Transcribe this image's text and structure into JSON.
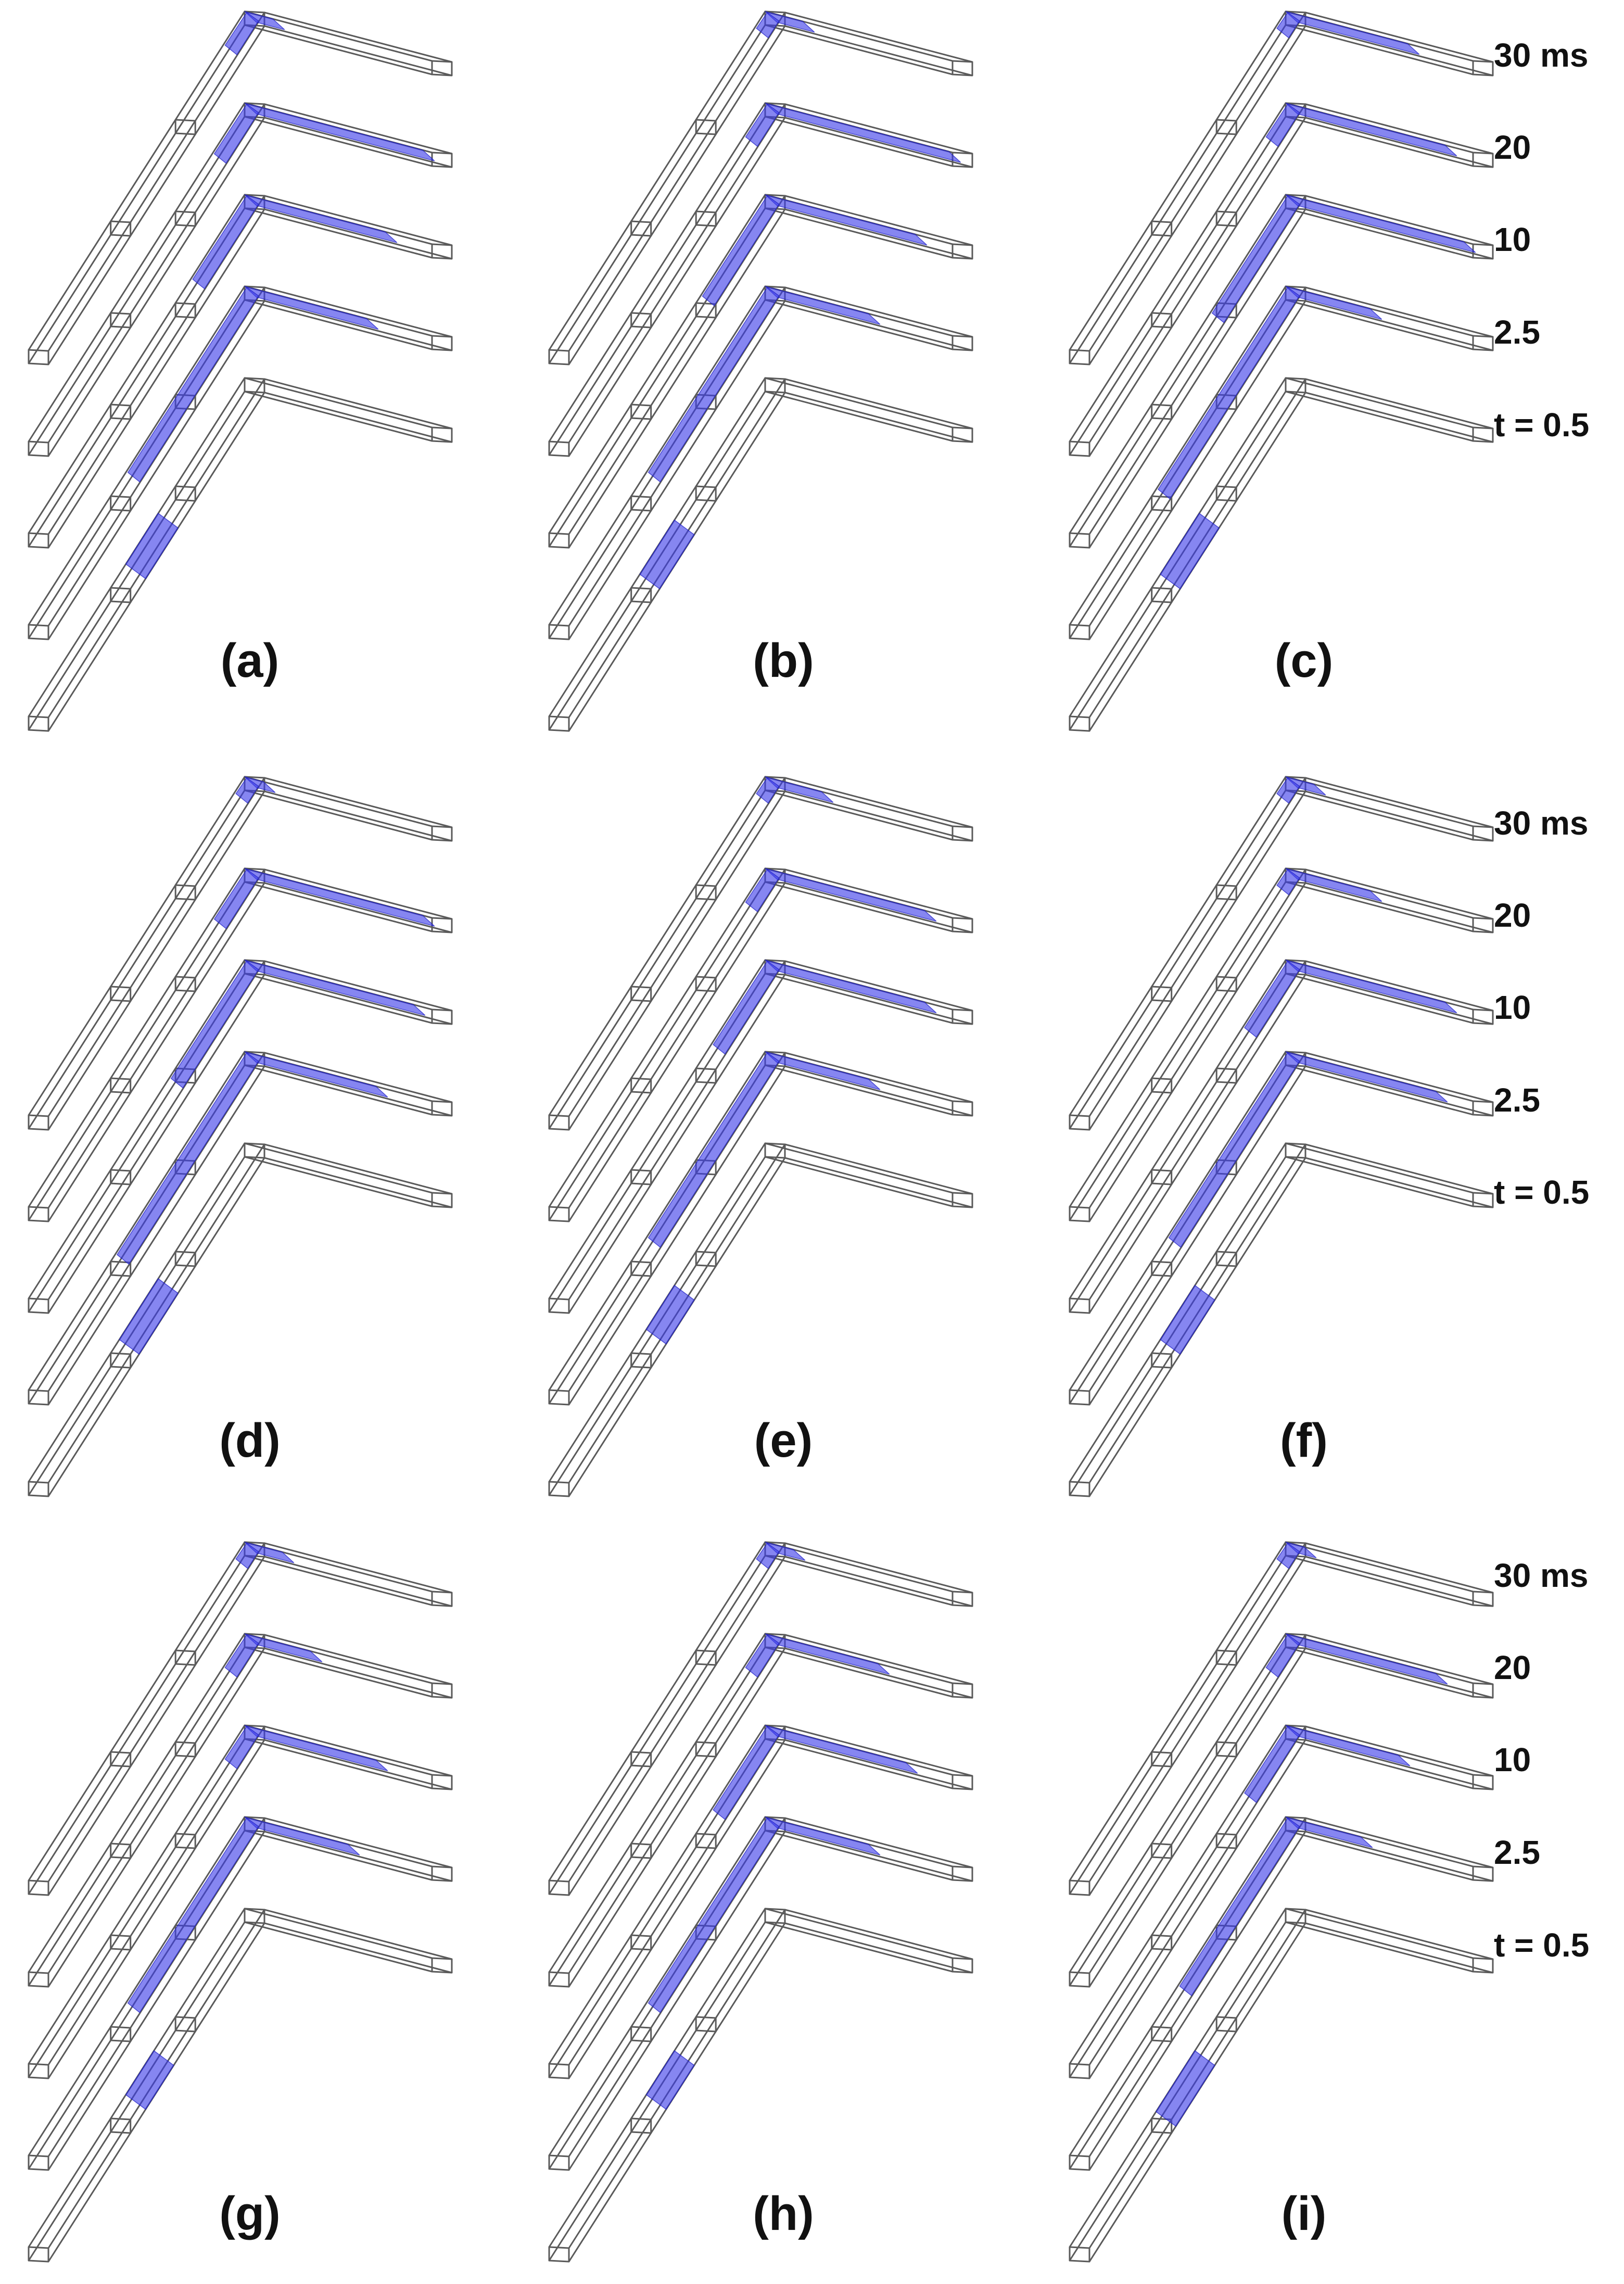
{
  "figure": {
    "panels": [
      {
        "label": "(a)",
        "name": "panel-a"
      },
      {
        "label": "(b)",
        "name": "panel-b"
      },
      {
        "label": "(c)",
        "name": "panel-c"
      },
      {
        "label": "(d)",
        "name": "panel-d"
      },
      {
        "label": "(e)",
        "name": "panel-e"
      },
      {
        "label": "(f)",
        "name": "panel-f"
      },
      {
        "label": "(g)",
        "name": "panel-g"
      },
      {
        "label": "(h)",
        "name": "panel-h"
      },
      {
        "label": "(i)",
        "name": "panel-i"
      }
    ],
    "time_labels": [
      "30 ms",
      "20",
      "10",
      "2.5",
      "t = 0.5"
    ],
    "row_time_labels": [
      [
        "30 ms",
        "20",
        "10",
        "2.5",
        "t = 0.5"
      ],
      [
        "30 ms",
        "20",
        "10",
        "2.5",
        "t = 0.5"
      ],
      [
        "30 ms",
        "20",
        "10",
        "2.5",
        "t = 0.5"
      ]
    ],
    "colors": {
      "fluid": "#3b3be8",
      "duct_outline": "#5a5a5a",
      "text": "#111111",
      "background": "#ffffff"
    }
  }
}
